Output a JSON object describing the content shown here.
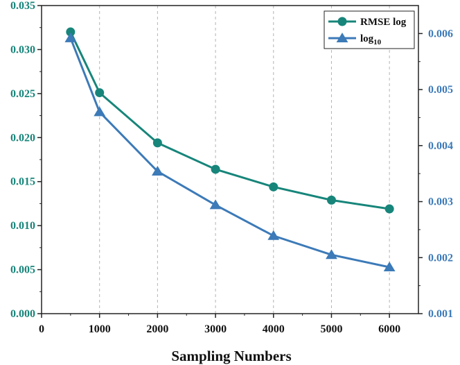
{
  "chart_data": {
    "type": "line",
    "xlabel": "Sampling Numbers",
    "xlim": [
      0,
      6500
    ],
    "x_ticks": [
      "0",
      "1000",
      "2000",
      "3000",
      "4000",
      "5000",
      "6000"
    ],
    "x_tick_values": [
      0,
      1000,
      2000,
      3000,
      4000,
      5000,
      6000
    ],
    "y_left": {
      "ylim": [
        0,
        0.035
      ],
      "ticks": [
        "0.000",
        "0.005",
        "0.010",
        "0.015",
        "0.020",
        "0.025",
        "0.030",
        "0.035"
      ],
      "tick_values": [
        0,
        0.005,
        0.01,
        0.015,
        0.02,
        0.025,
        0.03,
        0.035
      ],
      "color": "#17857a"
    },
    "y_right": {
      "ylim": [
        0.001,
        0.0065
      ],
      "ticks": [
        "0.001",
        "0.002",
        "0.003",
        "0.004",
        "0.005",
        "0.006"
      ],
      "tick_values": [
        0.001,
        0.002,
        0.003,
        0.004,
        0.005,
        0.006
      ],
      "color": "#3c7ab8"
    },
    "grid": "vertical dashed at x ticks",
    "legend_position": "top-right",
    "series": [
      {
        "name": "RMSE log",
        "axis": "left",
        "marker": "circle",
        "color": "#17857a",
        "x": [
          500,
          1000,
          2000,
          3000,
          4000,
          5000,
          6000
        ],
        "y": [
          0.032,
          0.0251,
          0.0194,
          0.0164,
          0.0144,
          0.0129,
          0.0119
        ]
      },
      {
        "name": "log",
        "name_subscript": "10",
        "axis": "right",
        "marker": "triangle",
        "color": "#3c7ab8",
        "x": [
          500,
          1000,
          2000,
          3000,
          4000,
          5000,
          6000
        ],
        "y": [
          0.00592,
          0.0046,
          0.00354,
          0.00294,
          0.00239,
          0.00205,
          0.00183
        ]
      }
    ]
  }
}
